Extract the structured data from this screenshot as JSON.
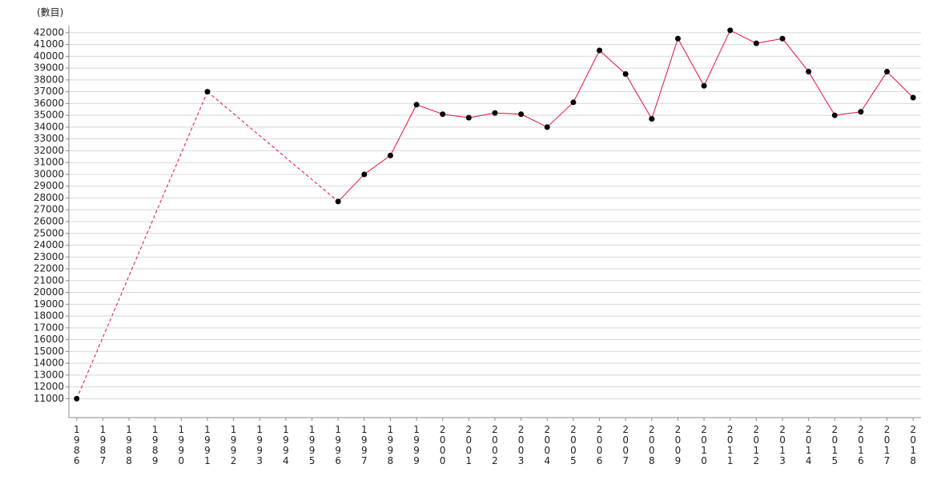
{
  "chart_data": {
    "type": "line",
    "y_label": "(數目)",
    "x": [
      1986,
      1991,
      1996,
      1997,
      1998,
      1999,
      2000,
      2001,
      2002,
      2003,
      2004,
      2005,
      2006,
      2007,
      2008,
      2009,
      2010,
      2011,
      2012,
      2013,
      2014,
      2015,
      2016,
      2017,
      2018
    ],
    "series": [
      {
        "color": "#e0103c",
        "marker_color": "#000000",
        "values": [
          11000,
          37000,
          27700,
          30000,
          31600,
          35900,
          35100,
          34800,
          35200,
          35100,
          34000,
          36100,
          40500,
          38500,
          34700,
          41500,
          37500,
          42200,
          41100,
          41500,
          38700,
          35000,
          35300,
          38700,
          36500
        ]
      }
    ],
    "xlim": [
      1985.7,
      2018.3
    ],
    "xticks": [
      1986,
      1987,
      1988,
      1989,
      1990,
      1991,
      1992,
      1993,
      1994,
      1995,
      1996,
      1997,
      1998,
      1999,
      2000,
      2001,
      2002,
      2003,
      2004,
      2005,
      2006,
      2007,
      2008,
      2009,
      2010,
      2011,
      2012,
      2013,
      2014,
      2015,
      2016,
      2017,
      2018
    ],
    "ylim": [
      9400,
      42600
    ],
    "yticks": [
      11000,
      12000,
      13000,
      14000,
      15000,
      16000,
      17000,
      18000,
      19000,
      20000,
      21000,
      22000,
      23000,
      24000,
      25000,
      26000,
      27000,
      28000,
      29000,
      30000,
      31000,
      32000,
      33000,
      34000,
      35000,
      36000,
      37000,
      38000,
      39000,
      40000,
      41000,
      42000
    ],
    "grid": true
  }
}
